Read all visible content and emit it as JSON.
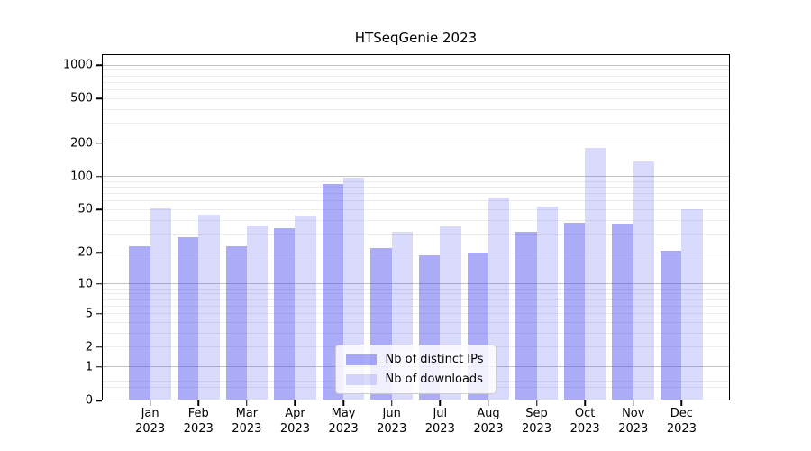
{
  "title": "HTSeqGenie 2023",
  "chart_data": {
    "type": "bar",
    "title": "HTSeqGenie 2023",
    "yscale": "log1p",
    "grid": true,
    "legend_position": "lower center",
    "categories": [
      "Jan 2023",
      "Feb 2023",
      "Mar 2023",
      "Apr 2023",
      "May 2023",
      "Jun 2023",
      "Jul 2023",
      "Aug 2023",
      "Sep 2023",
      "Oct 2023",
      "Nov 2023",
      "Dec 2023"
    ],
    "series": [
      {
        "name": "Nb of distinct IPs",
        "key": "ips",
        "color": "rgba(68,68,238,0.45)",
        "values": [
          23,
          28,
          23,
          34,
          86,
          22,
          19,
          20,
          31,
          38,
          37,
          21
        ]
      },
      {
        "name": "Nb of downloads",
        "key": "downloads",
        "color": "rgba(68,68,238,0.20)",
        "values": [
          51,
          45,
          36,
          44,
          97,
          31,
          35,
          65,
          53,
          180,
          137,
          50
        ]
      }
    ],
    "yticks": [
      0,
      1,
      2,
      5,
      10,
      20,
      50,
      100,
      200,
      500,
      1000
    ],
    "ylim": [
      0,
      1253
    ],
    "xlabel": "",
    "ylabel": ""
  },
  "colors": {
    "bar_ips": "rgba(68,68,238,0.45)",
    "bar_downloads": "rgba(68,68,238,0.20)",
    "grid_major": "#c3c3c3",
    "grid_minor": "#ececec",
    "axis": "#000000",
    "background": "#ffffff"
  }
}
